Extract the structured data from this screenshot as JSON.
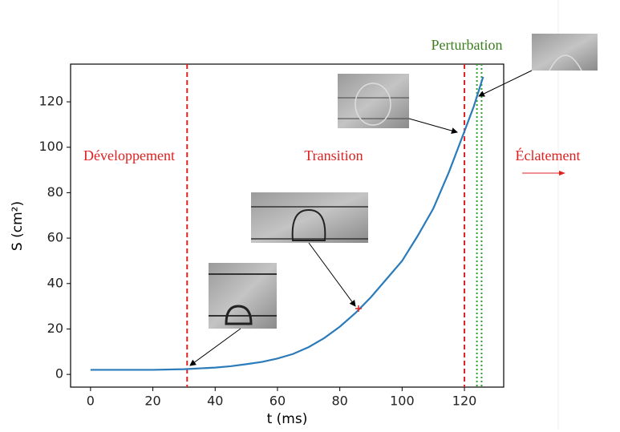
{
  "chart_data": {
    "type": "line",
    "x_label": "t (ms)",
    "y_label": "S (cm²)",
    "x": [
      0,
      10,
      20,
      30,
      40,
      45,
      50,
      55,
      60,
      65,
      70,
      75,
      80,
      85,
      90,
      95,
      100,
      105,
      110,
      115,
      120,
      123,
      126
    ],
    "series": [
      {
        "color": "#2b7bba",
        "values": [
          2,
          2,
          2,
          2.3,
          3,
          3.6,
          4.5,
          5.5,
          7,
          9,
          12,
          16,
          21,
          27,
          34,
          42,
          50,
          61,
          73,
          89,
          107,
          118,
          131
        ]
      }
    ],
    "xlim": [
      -6.4,
      132.6
    ],
    "ylim": [
      -5.6,
      136.6
    ],
    "xticks": [
      0,
      20,
      40,
      60,
      80,
      100,
      120
    ],
    "yticks": [
      0,
      20,
      40,
      60,
      80,
      100,
      120
    ],
    "vlines": [
      {
        "x": 31,
        "color": "#e02020",
        "style": "dashed"
      },
      {
        "x": 120,
        "color": "#e02020",
        "style": "dashed"
      },
      {
        "x": 124,
        "color": "#2ca02c",
        "style": "dotted"
      },
      {
        "x": 125.5,
        "color": "#2ca02c",
        "style": "dotted"
      }
    ],
    "marker": {
      "x": 86,
      "y": 29,
      "color": "#e02020"
    },
    "annotations": [
      {
        "text": "Développement",
        "color": "#e02020"
      },
      {
        "text": "Transition",
        "color": "#e02020"
      },
      {
        "text": "Éclatement",
        "color": "#e02020"
      },
      {
        "text": "Perturbation",
        "color": "#3a7d1e"
      }
    ]
  }
}
